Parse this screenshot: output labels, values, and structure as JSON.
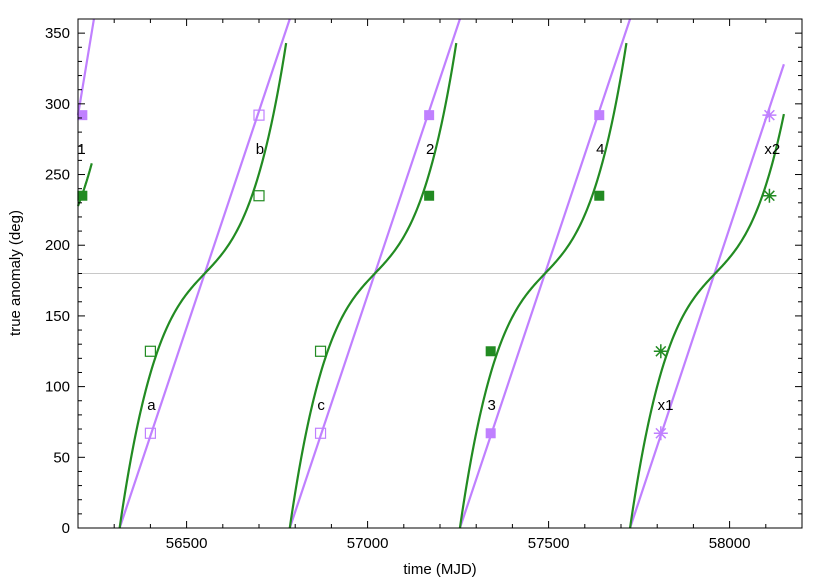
{
  "chart_data": {
    "type": "line",
    "xlabel": "time (MJD)",
    "ylabel": "true anomaly (deg)",
    "xlim": [
      56200,
      58200
    ],
    "ylim": [
      0,
      360
    ],
    "x_ticks": [
      56500,
      57000,
      57500,
      58000
    ],
    "y_ticks": [
      0,
      50,
      100,
      150,
      200,
      250,
      300,
      350
    ],
    "grid": false,
    "colors": {
      "purple": "#c080ff",
      "green": "#228b22",
      "reference": "#c8c8c8"
    },
    "reference_line": {
      "y": 180
    },
    "period_days": 470,
    "periastron_times": [
      56315,
      56785,
      57255,
      57725
    ],
    "series": [
      {
        "color": "purple",
        "segments": [
          {
            "x": [
              56200,
              56244
            ],
            "y": [
              292,
              360
            ]
          },
          {
            "x": [
              56315,
              56785
            ],
            "y": [
              0,
              360
            ]
          },
          {
            "x": [
              56785,
              57255
            ],
            "y": [
              0,
              360
            ]
          },
          {
            "x": [
              57255,
              57725
            ],
            "y": [
              0,
              360
            ]
          },
          {
            "x": [
              57725,
              58150
            ],
            "y": [
              0,
              328
            ]
          }
        ]
      },
      {
        "color": "green",
        "segments": [
          {
            "x": [
              56200,
              56238
            ],
            "y": [
              235,
              360
            ]
          },
          {
            "x": [
              56315,
              56775
            ],
            "y": [
              0,
              360
            ]
          },
          {
            "x": [
              56785,
              57245
            ],
            "y": [
              0,
              360
            ]
          },
          {
            "x": [
              57255,
              57715
            ],
            "y": [
              0,
              360
            ]
          },
          {
            "x": [
              57725,
              58150
            ],
            "y": [
              0,
              277
            ]
          }
        ]
      }
    ],
    "markers": [
      {
        "x": 56212,
        "y": 292,
        "color": "purple",
        "symbol": "square-filled"
      },
      {
        "x": 56212,
        "y": 235,
        "color": "green",
        "symbol": "square-filled"
      },
      {
        "x": 56400,
        "y": 67,
        "color": "purple",
        "symbol": "square-open"
      },
      {
        "x": 56400,
        "y": 125,
        "color": "green",
        "symbol": "square-open"
      },
      {
        "x": 56700,
        "y": 292,
        "color": "purple",
        "symbol": "square-open"
      },
      {
        "x": 56700,
        "y": 235,
        "color": "green",
        "symbol": "square-open"
      },
      {
        "x": 56870,
        "y": 67,
        "color": "purple",
        "symbol": "square-open"
      },
      {
        "x": 56870,
        "y": 125,
        "color": "green",
        "symbol": "square-open"
      },
      {
        "x": 57170,
        "y": 292,
        "color": "purple",
        "symbol": "square-filled"
      },
      {
        "x": 57170,
        "y": 235,
        "color": "green",
        "symbol": "square-filled"
      },
      {
        "x": 57340,
        "y": 67,
        "color": "purple",
        "symbol": "square-filled"
      },
      {
        "x": 57340,
        "y": 125,
        "color": "green",
        "symbol": "square-filled"
      },
      {
        "x": 57640,
        "y": 292,
        "color": "purple",
        "symbol": "square-filled"
      },
      {
        "x": 57640,
        "y": 235,
        "color": "green",
        "symbol": "square-filled"
      },
      {
        "x": 57810,
        "y": 67,
        "color": "purple",
        "symbol": "star"
      },
      {
        "x": 57810,
        "y": 125,
        "color": "green",
        "symbol": "star"
      },
      {
        "x": 58110,
        "y": 292,
        "color": "purple",
        "symbol": "star"
      },
      {
        "x": 58110,
        "y": 235,
        "color": "green",
        "symbol": "star"
      }
    ],
    "annotations": [
      {
        "text": "1",
        "x": 56212,
        "y": 268
      },
      {
        "text": "b",
        "x": 56705,
        "y": 268
      },
      {
        "text": "2",
        "x": 57175,
        "y": 268
      },
      {
        "text": "4",
        "x": 57645,
        "y": 268
      },
      {
        "text": "x2",
        "x": 58110,
        "y": 268
      },
      {
        "text": "a",
        "x": 56405,
        "y": 87
      },
      {
        "text": "c",
        "x": 56875,
        "y": 87
      },
      {
        "text": "3",
        "x": 57345,
        "y": 87
      },
      {
        "text": "x1",
        "x": 57815,
        "y": 87
      }
    ]
  }
}
